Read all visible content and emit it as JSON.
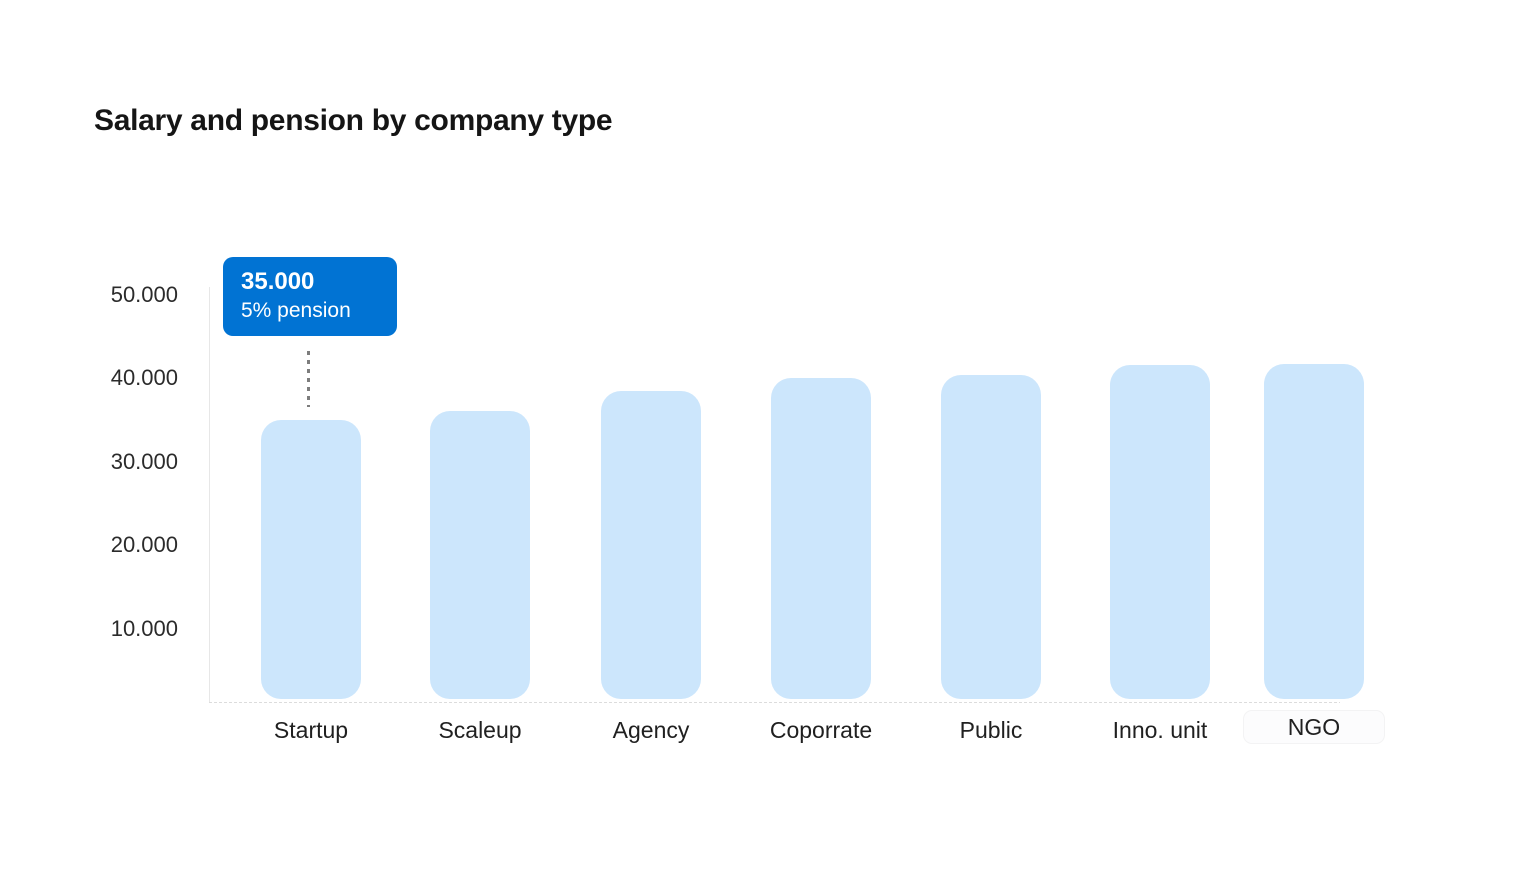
{
  "chart_data": {
    "type": "bar",
    "title": "Salary and pension by company type",
    "categories": [
      "Startup",
      "Scaleup",
      "Agency",
      "Coporrate",
      "Public",
      "Inno. unit",
      "NGO"
    ],
    "values": [
      35000,
      36000,
      38500,
      40000,
      40300,
      41500,
      41700
    ],
    "y_ticks": [
      {
        "label": "50.000",
        "value": 50000
      },
      {
        "label": "40.000",
        "value": 40000
      },
      {
        "label": "30.000",
        "value": 30000
      },
      {
        "label": "20.000",
        "value": 20000
      },
      {
        "label": "10.000",
        "value": 10000
      }
    ],
    "ylim": [
      0,
      52000
    ],
    "xlabel": "",
    "ylabel": "",
    "grid": false,
    "legend": null,
    "bar_color": "#cce6fc",
    "axis_color": "#e7e7e7",
    "highlight_label": "NGO",
    "annotation": {
      "category": "Startup",
      "value_label": "35.000",
      "note": "5% pension",
      "bg_color": "#0173d3",
      "text_color": "#ffffff",
      "connector_color": "#7d7d7d"
    }
  }
}
